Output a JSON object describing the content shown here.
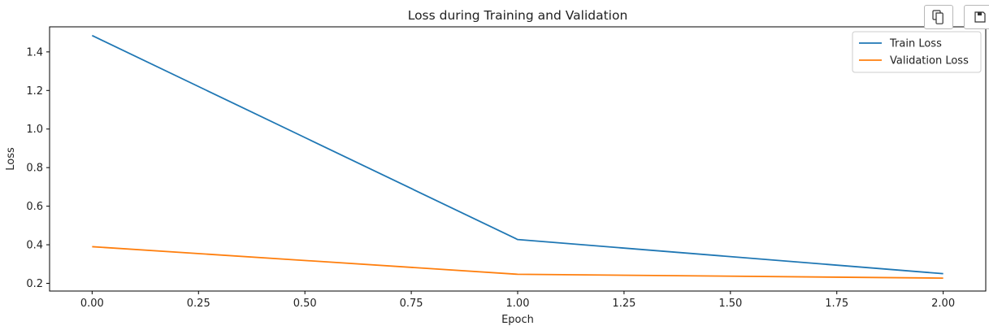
{
  "chart_data": {
    "type": "line",
    "title": "Loss during Training and Validation",
    "xlabel": "Epoch",
    "ylabel": "Loss",
    "x": [
      0,
      1,
      2
    ],
    "xlim": [
      -0.1,
      2.1
    ],
    "ylim": [
      0.16,
      1.53
    ],
    "xticks": [
      "0.00",
      "0.25",
      "0.50",
      "0.75",
      "1.00",
      "1.25",
      "1.50",
      "1.75",
      "2.00"
    ],
    "yticks": [
      "0.2",
      "0.4",
      "0.6",
      "0.8",
      "1.0",
      "1.2",
      "1.4"
    ],
    "grid": false,
    "legend_position": "top-right",
    "series": [
      {
        "name": "Train Loss",
        "values": [
          1.485,
          0.427,
          0.25
        ],
        "color": "#1f77b4"
      },
      {
        "name": "Validation Loss",
        "values": [
          0.39,
          0.247,
          0.227
        ],
        "color": "#ff7f0e"
      }
    ]
  },
  "toolbar": {
    "copy_icon": "copy-icon",
    "save_icon": "save-icon"
  }
}
